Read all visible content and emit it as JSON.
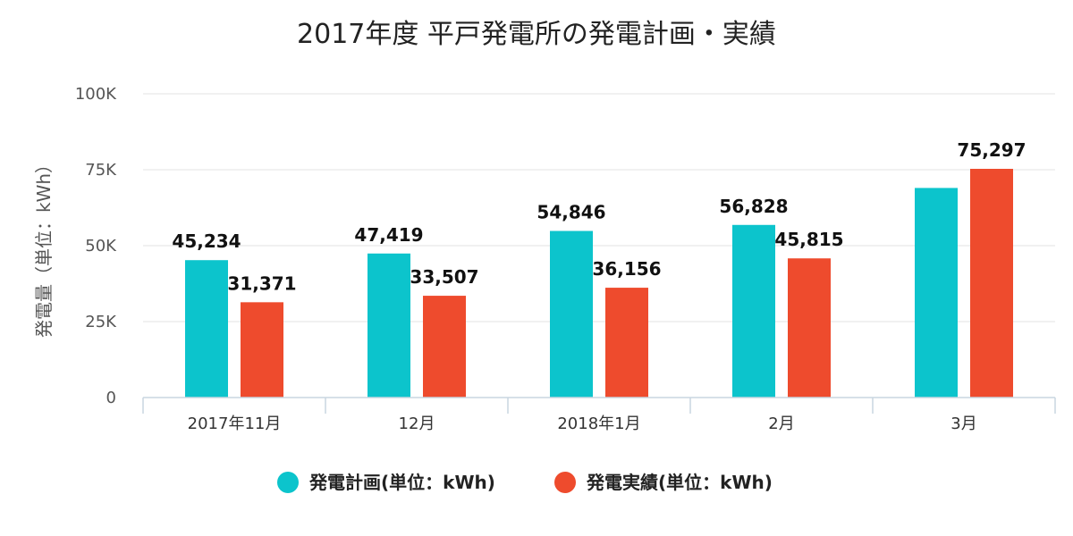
{
  "chart_data": {
    "type": "bar",
    "title": "2017年度 平戸発電所の発電計画・実績",
    "xlabel": "",
    "ylabel": "発電量（単位：kWh）",
    "categories": [
      "2017年11月",
      "12月",
      "2018年1月",
      "2月",
      "3月"
    ],
    "ylim": [
      0,
      100000
    ],
    "yticks": [
      0,
      25000,
      50000,
      75000,
      100000
    ],
    "ytick_labels": [
      "0",
      "25K",
      "50K",
      "75K",
      "100K"
    ],
    "grid": true,
    "legend_position": "bottom-center",
    "series": [
      {
        "name": "発電計画(単位：kWh)",
        "color": "#0cc4cc",
        "values": [
          45234,
          47419,
          54846,
          56828,
          69000
        ],
        "labels": [
          "45,234",
          "47,419",
          "54,846",
          "56,828",
          ""
        ]
      },
      {
        "name": "発電実績(単位：kWh)",
        "color": "#ee4b2d",
        "values": [
          31371,
          33507,
          36156,
          45815,
          75297
        ],
        "labels": [
          "31,371",
          "33,507",
          "36,156",
          "45,815",
          "75,297"
        ]
      }
    ]
  }
}
